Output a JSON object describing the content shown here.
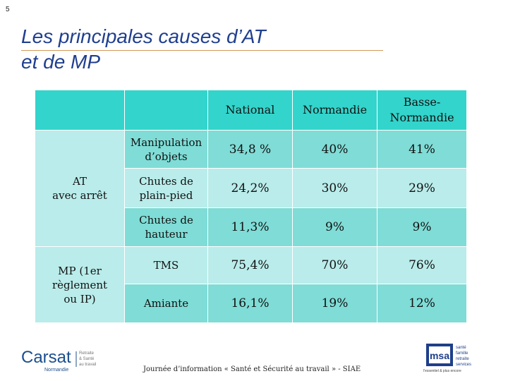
{
  "slide": {
    "number": "5",
    "title_line1": "Les principales causes d’AT",
    "title_line2": "et de MP"
  },
  "table": {
    "columns": [
      "National",
      "Normandie",
      "Basse-Normandie"
    ],
    "groups": [
      {
        "label_line1": "AT",
        "label_line2": "avec arrêt",
        "label_line3": ""
      },
      {
        "label_line1": "MP (1er",
        "label_line2": "règlement",
        "label_line3": "ou IP)"
      }
    ],
    "rows": [
      {
        "label_line1": "Manipulation",
        "label_line2": "d’objets",
        "national": "34,8 %",
        "normandie": "40%",
        "basse_normandie": "41%"
      },
      {
        "label_line1": "Chutes de",
        "label_line2": "plain-pied",
        "national": "24,2%",
        "normandie": "30%",
        "basse_normandie": "29%"
      },
      {
        "label_line1": "Chutes de",
        "label_line2": "hauteur",
        "national": "11,3%",
        "normandie": "9%",
        "basse_normandie": "9%"
      },
      {
        "label_line1": "TMS",
        "label_line2": "",
        "national": "75,4%",
        "normandie": "70%",
        "basse_normandie": "76%"
      },
      {
        "label_line1": "Amiante",
        "label_line2": "",
        "national": "16,1%",
        "normandie": "19%",
        "basse_normandie": "12%"
      }
    ]
  },
  "footer": {
    "text": "Journée d’information « Santé et Sécurité au travail » - SIAE"
  },
  "logos": {
    "carsat_name": "Carsat",
    "carsat_region": "Normandie",
    "carsat_tag1": "Retraite",
    "carsat_tag2": "& Santé",
    "carsat_tag3": "au travail",
    "msa_letters": "msa",
    "msa_tag1": "santé",
    "msa_tag2": "famille",
    "msa_tag3": "retraite",
    "msa_tag4": "services",
    "msa_slogan": "l'essentiel & plus encore",
    "carsat_color": "#1b4f8f",
    "msa_color": "#1e3f8a"
  }
}
